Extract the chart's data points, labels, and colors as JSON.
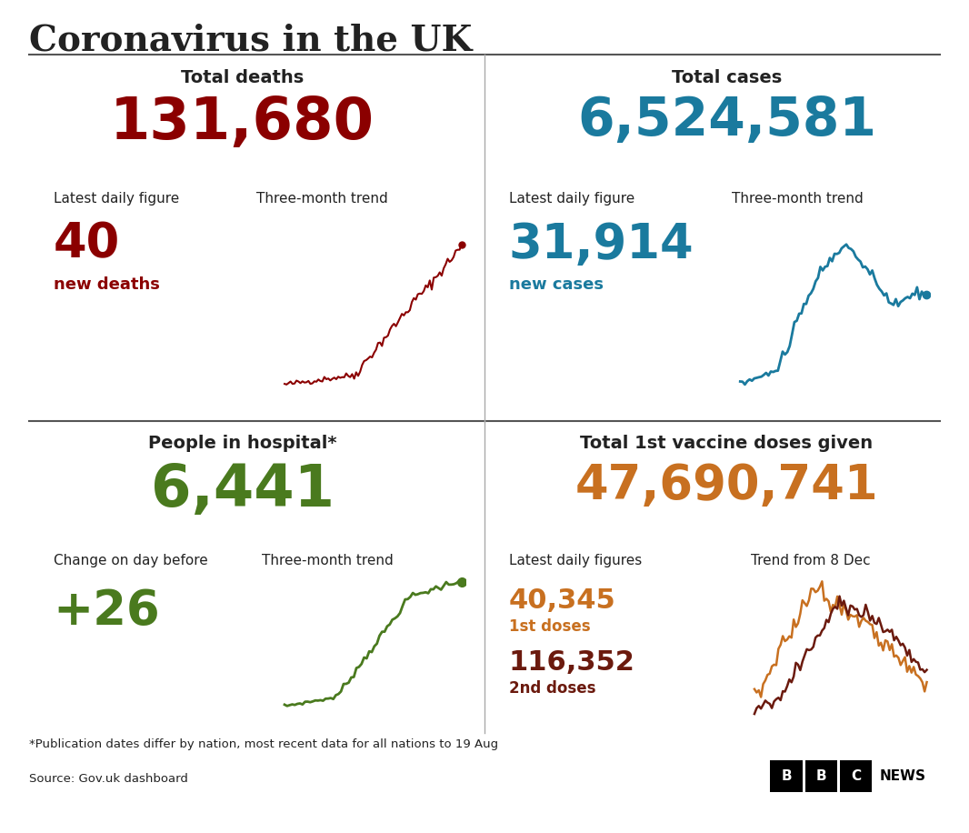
{
  "title": "Coronavirus in the UK",
  "title_fontsize": 28,
  "background_color": "#ffffff",
  "text_color": "#222222",
  "deaths_total": "131,680",
  "deaths_total_color": "#8b0000",
  "deaths_label": "Total deaths",
  "deaths_daily": "40",
  "deaths_daily_label": "new deaths",
  "deaths_daily_color": "#8b0000",
  "deaths_latest_label": "Latest daily figure",
  "deaths_trend_label": "Three-month trend",
  "cases_total": "6,524,581",
  "cases_total_color": "#1a7a9e",
  "cases_label": "Total cases",
  "cases_daily": "31,914",
  "cases_daily_label": "new cases",
  "cases_daily_color": "#1a7a9e",
  "cases_latest_label": "Latest daily figure",
  "cases_trend_label": "Three-month trend",
  "hospital_total": "6,441",
  "hospital_total_color": "#4a7a1e",
  "hospital_label": "People in hospital*",
  "hospital_daily": "+26",
  "hospital_daily_color": "#4a7a1e",
  "hospital_change_label": "Change on day before",
  "hospital_trend_label": "Three-month trend",
  "vaccine_total": "47,690,741",
  "vaccine_total_color": "#c87020",
  "vaccine_label": "Total 1st vaccine doses given",
  "vaccine_1st": "40,345",
  "vaccine_1st_label": "1st doses",
  "vaccine_1st_color": "#c87020",
  "vaccine_2nd": "116,352",
  "vaccine_2nd_label": "2nd doses",
  "vaccine_2nd_color": "#6b1a0e",
  "vaccine_latest_label": "Latest daily figures",
  "vaccine_trend_label": "Trend from 8 Dec",
  "footnote": "*Publication dates differ by nation, most recent data for all nations to 19 Aug",
  "source": "Source: Gov.uk dashboard"
}
